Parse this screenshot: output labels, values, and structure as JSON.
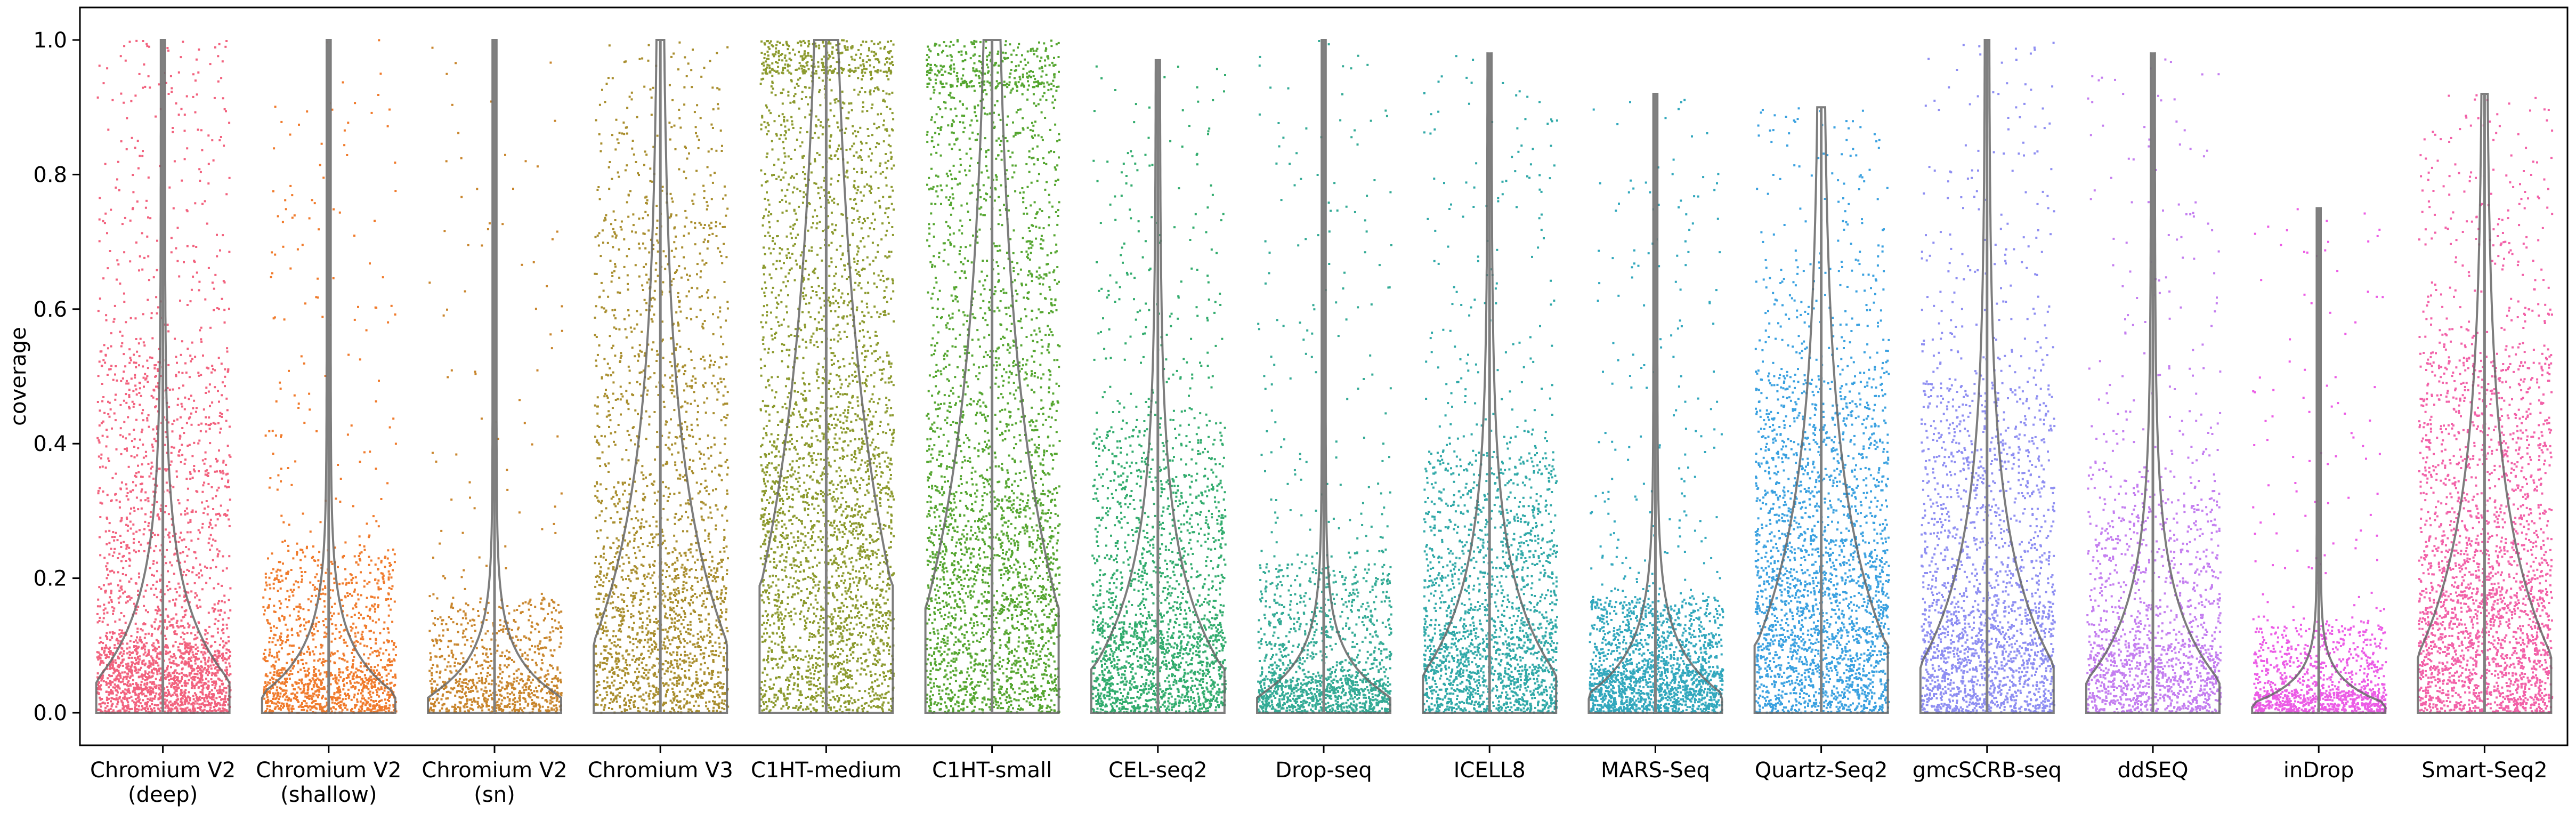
{
  "chart_data": {
    "type": "scatter",
    "subtype": "strip plot with violin outlines",
    "ylabel": "coverage",
    "xlabel": "",
    "title": "",
    "ylim": [
      0.0,
      1.0
    ],
    "yticks": [
      0.0,
      0.2,
      0.4,
      0.6,
      0.8,
      1.0
    ],
    "ytick_labels": [
      "0.0",
      "0.2",
      "0.4",
      "0.6",
      "0.8",
      "1.0"
    ],
    "grid": false,
    "legend": "none",
    "categories": [
      {
        "label": [
          "Chromium V2",
          "(deep)"
        ],
        "color": "#f2627e",
        "max": 1.0,
        "p90": 0.52,
        "median": 0.1,
        "density": 1.0
      },
      {
        "label": [
          "Chromium V2",
          "(shallow)"
        ],
        "color": "#f07b2c",
        "max": 1.0,
        "p90": 0.24,
        "median": 0.06,
        "density": 0.55
      },
      {
        "label": [
          "Chromium V2",
          "(sn)"
        ],
        "color": "#c9862d",
        "max": 1.0,
        "p90": 0.17,
        "median": 0.05,
        "density": 0.35
      },
      {
        "label": [
          "Chromium V3"
        ],
        "color": "#a98e2e",
        "max": 1.0,
        "p90": 0.72,
        "median": 0.22,
        "density": 0.85
      },
      {
        "label": [
          "C1HT-medium"
        ],
        "color": "#8c9a2e",
        "max": 1.0,
        "p90": 0.95,
        "median": 0.38,
        "density": 1.3
      },
      {
        "label": [
          "C1HT-small"
        ],
        "color": "#55a630",
        "max": 1.0,
        "p90": 0.93,
        "median": 0.32,
        "density": 1.2
      },
      {
        "label": [
          "CEL-seq2"
        ],
        "color": "#32ac6e",
        "max": 0.97,
        "p90": 0.42,
        "median": 0.13,
        "density": 0.85
      },
      {
        "label": [
          "Drop-seq"
        ],
        "color": "#34ab96",
        "max": 1.0,
        "p90": 0.22,
        "median": 0.05,
        "density": 0.6
      },
      {
        "label": [
          "ICELL8"
        ],
        "color": "#30a9a8",
        "max": 0.98,
        "p90": 0.38,
        "median": 0.12,
        "density": 0.8
      },
      {
        "label": [
          "MARS-Seq"
        ],
        "color": "#32a8bd",
        "max": 0.92,
        "p90": 0.17,
        "median": 0.06,
        "density": 0.75
      },
      {
        "label": [
          "Quartz-Seq2"
        ],
        "color": "#3aa1e0",
        "max": 0.9,
        "p90": 0.5,
        "median": 0.2,
        "density": 1.0
      },
      {
        "label": [
          "gmcSCRB-seq"
        ],
        "color": "#8e8ef2",
        "max": 1.0,
        "p90": 0.48,
        "median": 0.15,
        "density": 0.85
      },
      {
        "label": [
          "ddSEQ"
        ],
        "color": "#c47ef0",
        "max": 0.98,
        "p90": 0.35,
        "median": 0.1,
        "density": 0.6
      },
      {
        "label": [
          "inDrop"
        ],
        "color": "#ec5ce6",
        "max": 0.75,
        "p90": 0.13,
        "median": 0.03,
        "density": 0.45
      },
      {
        "label": [
          "Smart-Seq2"
        ],
        "color": "#f261a8",
        "max": 0.92,
        "p90": 0.52,
        "median": 0.18,
        "density": 1.0
      }
    ]
  }
}
